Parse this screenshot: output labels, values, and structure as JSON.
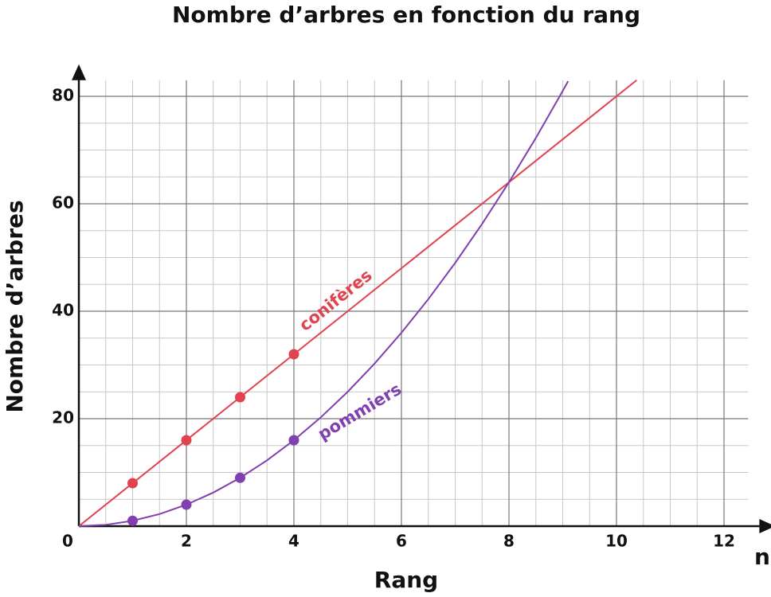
{
  "chart_data": {
    "type": "line",
    "title": "Nombre d’arbres en fonction du rang",
    "x_label": "Rang",
    "x_symbol": "n",
    "y_label": "Nombre d’arbres",
    "xlim": [
      0,
      12.45
    ],
    "ylim": [
      0,
      83
    ],
    "xticks": [
      0,
      2,
      4,
      6,
      8,
      10,
      12
    ],
    "yticks": [
      20,
      40,
      60,
      80
    ],
    "grid": true,
    "x_minor_step": 0.5,
    "y_minor_step": 5,
    "series": [
      {
        "name": "conifères",
        "color": "#e0434f",
        "x": [
          1,
          2,
          3,
          4
        ],
        "values": [
          8,
          16,
          24,
          32
        ],
        "curve_x": [
          0,
          10.375
        ],
        "curve_values": [
          0,
          83
        ]
      },
      {
        "name": "pommiers",
        "color": "#8040b0",
        "x": [
          1,
          2,
          3,
          4
        ],
        "values": [
          1,
          4,
          9,
          16
        ],
        "curve_x": [
          0,
          0.5,
          1,
          1.5,
          2,
          2.5,
          3,
          3.5,
          4,
          4.5,
          5,
          5.5,
          6,
          6.5,
          7,
          7.5,
          8,
          8.5,
          9,
          9.1
        ],
        "curve_values": [
          0,
          0.25,
          1,
          2.25,
          4,
          6.25,
          9,
          12.25,
          16,
          20.25,
          25,
          30.25,
          36,
          42.25,
          49,
          56.25,
          64,
          72.25,
          81,
          82.81
        ]
      }
    ]
  }
}
